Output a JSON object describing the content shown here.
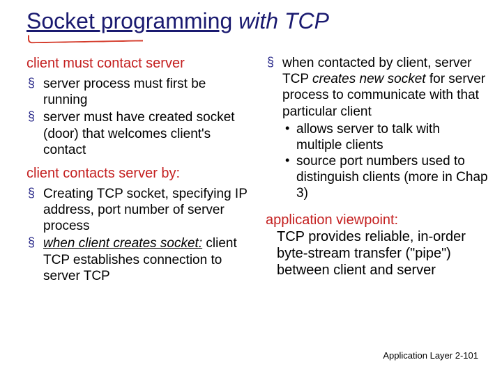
{
  "title": {
    "part1": "Socket programming",
    "part2": " with TCP"
  },
  "left": {
    "heading1": "client must contact server",
    "bullets1": [
      "server process must first be running",
      "server must have created socket (door) that welcomes client's contact"
    ],
    "heading2": "client contacts server by:",
    "bullets2": [
      "Creating TCP socket, specifying IP address, port number of server process"
    ],
    "bullet2_italic_lead": "when client creates socket:",
    "bullet2_italic_rest": " client TCP establishes connection to server TCP"
  },
  "right": {
    "bullet_lead": "when contacted by client, server TCP ",
    "bullet_bold": "creates new socket",
    "bullet_rest": " for server process to communicate with that particular client",
    "subs": [
      "allows server to talk with multiple clients",
      "source port numbers used to distinguish clients (more in Chap 3)"
    ],
    "app_head": "application viewpoint:",
    "app_body": "TCP provides reliable, in-order byte-stream transfer (\"pipe\") between client and server"
  },
  "footer": {
    "label": "Application Layer",
    "page": "2-101"
  },
  "colors": {
    "title": "#1a1a70",
    "heading": "#c42020",
    "mark": "#d43a2a"
  }
}
